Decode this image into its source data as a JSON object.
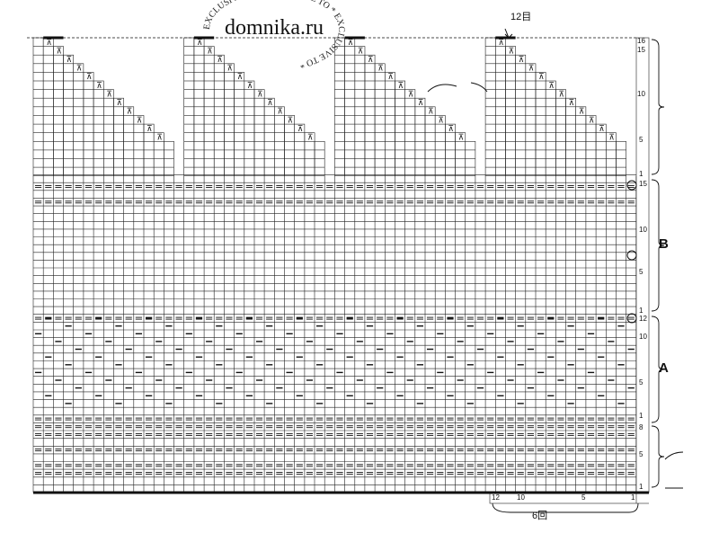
{
  "watermark": {
    "site": "domnika.ru",
    "ring_text": "EXCLUSIVE TO * EXCLUSIVE TO * EXCLUSIVE TO *"
  },
  "stitch_count_label": "12目",
  "repeat_label": "6回",
  "sections": {
    "a": {
      "label": "A",
      "row_numbers": [
        "1",
        "5",
        "8",
        "1",
        "5",
        "10",
        "12"
      ]
    },
    "b": {
      "label": "B",
      "row_numbers": [
        "1",
        "5",
        "10",
        "15"
      ]
    },
    "top": {
      "row_numbers": [
        "1",
        "5",
        "10",
        "15",
        "16"
      ]
    }
  },
  "bottom_stitch_numbers": [
    "12",
    "10",
    "5",
    "1"
  ],
  "colors": {
    "grid": "#222222",
    "paper": "#ffffff",
    "ink": "#111111"
  }
}
